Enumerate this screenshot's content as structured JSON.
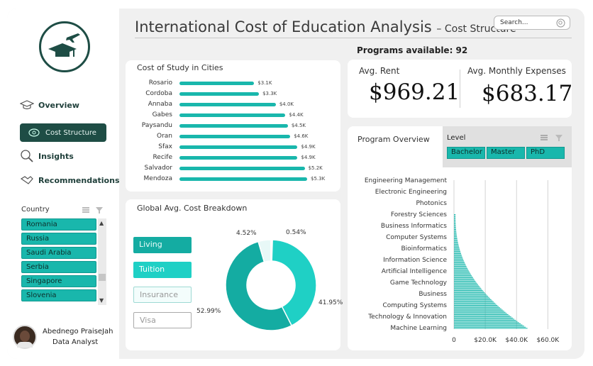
{
  "header": {
    "title": "International Cost of Education Analysis",
    "subtitle": "– Cost Structure",
    "search_placeholder": "Search..."
  },
  "sidebar": {
    "nav": [
      {
        "label": "Overview",
        "icon": "graduation-cap-icon"
      },
      {
        "label": "Cost Structure",
        "icon": "money-icon"
      },
      {
        "label": "Insights",
        "icon": "magnifier-icon"
      },
      {
        "label": "Recommendations",
        "icon": "handshake-icon"
      }
    ],
    "country_label": "Country",
    "countries": [
      "Romania",
      "Russia",
      "Saudi Arabia",
      "Serbia",
      "Singapore",
      "Slovenia"
    ],
    "user_name": "Abednego PraiseJah",
    "user_role": "Data Analyst"
  },
  "programs_available": "Programs available: 92",
  "kpis": {
    "rent_label": "Avg. Rent",
    "rent_value": "$969.21",
    "expenses_label": "Avg. Monthly Expenses",
    "expenses_value": "$683.17"
  },
  "city_chart": {
    "title": "Cost of Study in Cities",
    "cities": [
      "Rosario",
      "Cordoba",
      "Annaba",
      "Gabes",
      "Paysandu",
      "Oran",
      "Sfax",
      "Recife",
      "Salvador",
      "Mendoza"
    ],
    "values": [
      3.1,
      3.3,
      4.0,
      4.4,
      4.5,
      4.6,
      4.9,
      4.9,
      5.2,
      5.3
    ],
    "labels": [
      "$3.1K",
      "$3.3K",
      "$4.0K",
      "$4.4K",
      "$4.5K",
      "$4.6K",
      "$4.9K",
      "$4.9K",
      "$5.2K",
      "$5.3K"
    ]
  },
  "breakdown": {
    "title": "Global Avg. Cost Breakdown",
    "legend": [
      "Living",
      "Tuition",
      "Insurance",
      "Visa"
    ],
    "percents": [
      52.99,
      41.95,
      4.52,
      0.54
    ],
    "labels": [
      "52.99%",
      "41.95%",
      "4.52%",
      "0.54%"
    ],
    "colors": [
      "#14aca2",
      "#1fd0c5",
      "#e8f8f7",
      "#ffffff"
    ]
  },
  "program_overview": {
    "title": "Program Overview",
    "level_label": "Level",
    "levels": [
      "Bachelor",
      "Master",
      "PhD"
    ],
    "programs": [
      "Engineering Management",
      "Electronic Engineering",
      "Photonics",
      "Forestry Sciences",
      "Business Informatics",
      "Computer Systems",
      "Bioinformatics",
      "Information Science",
      "Artificial Intelligence",
      "Game Technology",
      "Business",
      "Computing Systems",
      "Technology & Innovation",
      "Machine Learning"
    ],
    "x_ticks": [
      "0",
      "$20.0K",
      "$40.0K",
      "$60.0K"
    ]
  },
  "chart_data": [
    {
      "type": "bar",
      "title": "Cost of Study in Cities",
      "categories": [
        "Rosario",
        "Cordoba",
        "Annaba",
        "Gabes",
        "Paysandu",
        "Oran",
        "Sfax",
        "Recife",
        "Salvador",
        "Mendoza"
      ],
      "values": [
        3.1,
        3.3,
        4.0,
        4.4,
        4.5,
        4.6,
        4.9,
        4.9,
        5.2,
        5.3
      ],
      "unit": "$K"
    },
    {
      "type": "pie",
      "title": "Global Avg. Cost Breakdown",
      "categories": [
        "Living",
        "Tuition",
        "Insurance",
        "Visa"
      ],
      "values": [
        52.99,
        41.95,
        4.52,
        0.54
      ]
    }
  ]
}
